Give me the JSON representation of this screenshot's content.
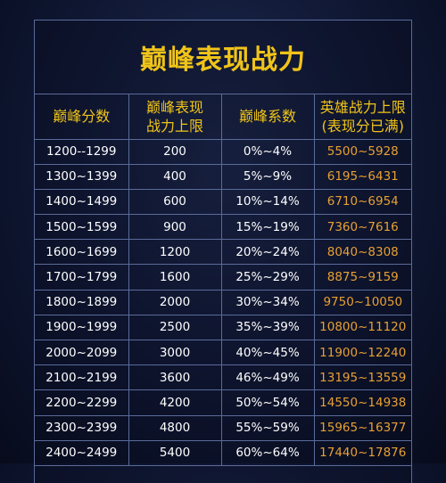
{
  "title": "巅峰表现战力",
  "headers": {
    "score": "巅峰分数",
    "power_limit": "巅峰表现战力上限",
    "power_limit_line1": "巅峰表现",
    "power_limit_line2": "战力上限",
    "coef": "巅峰系数",
    "hero_line1": "英雄战力上限",
    "hero_line2": "(表现分已满)"
  },
  "rows": [
    {
      "score": "1200--1299",
      "limit": "200",
      "coef": "0%~4%",
      "hero": "5500~5928"
    },
    {
      "score": "1300~1399",
      "limit": "400",
      "coef": "5%~9%",
      "hero": "6195~6431"
    },
    {
      "score": "1400~1499",
      "limit": "600",
      "coef": "10%~14%",
      "hero": "6710~6954"
    },
    {
      "score": "1500~1599",
      "limit": "900",
      "coef": "15%~19%",
      "hero": "7360~7616"
    },
    {
      "score": "1600~1699",
      "limit": "1200",
      "coef": "20%~24%",
      "hero": "8040~8308"
    },
    {
      "score": "1700~1799",
      "limit": "1600",
      "coef": "25%~29%",
      "hero": "8875~9159"
    },
    {
      "score": "1800~1899",
      "limit": "2000",
      "coef": "30%~34%",
      "hero": "9750~10050"
    },
    {
      "score": "1900~1999",
      "limit": "2500",
      "coef": "35%~39%",
      "hero": "10800~11120"
    },
    {
      "score": "2000~2099",
      "limit": "3000",
      "coef": "40%~45%",
      "hero": "11900~12240"
    },
    {
      "score": "2100~2199",
      "limit": "3600",
      "coef": "46%~49%",
      "hero": "13195~13559"
    },
    {
      "score": "2200~2299",
      "limit": "4200",
      "coef": "50%~54%",
      "hero": "14550~14938"
    },
    {
      "score": "2300~2399",
      "limit": "4800",
      "coef": "55%~59%",
      "hero": "15965~16377"
    },
    {
      "score": "2400~2499",
      "limit": "5400",
      "coef": "60%~64%",
      "hero": "17440~17876"
    }
  ],
  "colors": {
    "title": "#f0c419",
    "hero_values": "#e8a033",
    "grid": "#5a6b9a",
    "background": "#0f1733"
  }
}
